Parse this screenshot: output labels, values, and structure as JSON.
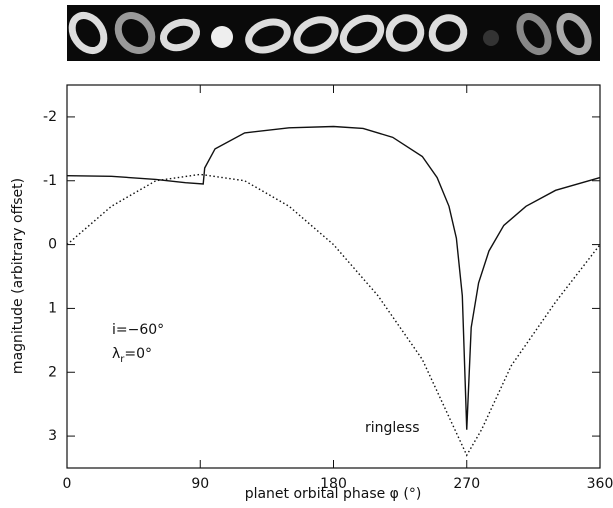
{
  "chart_data": {
    "type": "line",
    "xlabel": "planet orbital phase φ (°)",
    "ylabel": "magnitude (arbitrary offset)",
    "xlim": [
      0,
      360
    ],
    "xticks": [
      0,
      90,
      180,
      270,
      360
    ],
    "ylim": [
      3.5,
      -2.5
    ],
    "yticks": [
      -2,
      -1,
      0,
      1,
      2,
      3
    ],
    "series": [
      {
        "style": "solid",
        "color": "#111111",
        "x": [
          0,
          30,
          60,
          80,
          92,
          93,
          100,
          120,
          150,
          180,
          200,
          220,
          240,
          250,
          258,
          263,
          267,
          270,
          273,
          278,
          285,
          295,
          310,
          330,
          360
        ],
        "values": [
          -1.08,
          -1.07,
          -1.02,
          -0.97,
          -0.95,
          -1.2,
          -1.5,
          -1.75,
          -1.83,
          -1.85,
          -1.82,
          -1.68,
          -1.38,
          -1.05,
          -0.6,
          -0.1,
          0.8,
          2.9,
          1.3,
          0.6,
          0.1,
          -0.3,
          -0.6,
          -0.85,
          -1.05
        ]
      },
      {
        "name": "ringless",
        "style": "dotted",
        "color": "#111111",
        "x": [
          0,
          30,
          60,
          90,
          120,
          150,
          180,
          210,
          240,
          260,
          270,
          280,
          300,
          330,
          360
        ],
        "values": [
          0,
          -0.6,
          -1.0,
          -1.1,
          -1.0,
          -0.6,
          0,
          0.8,
          1.8,
          2.8,
          3.3,
          2.9,
          1.9,
          0.9,
          0
        ]
      }
    ],
    "annotations": [
      {
        "text": "i=−60°"
      },
      {
        "symbol": "λ",
        "subscript": "r",
        "text": "=0°"
      }
    ]
  }
}
